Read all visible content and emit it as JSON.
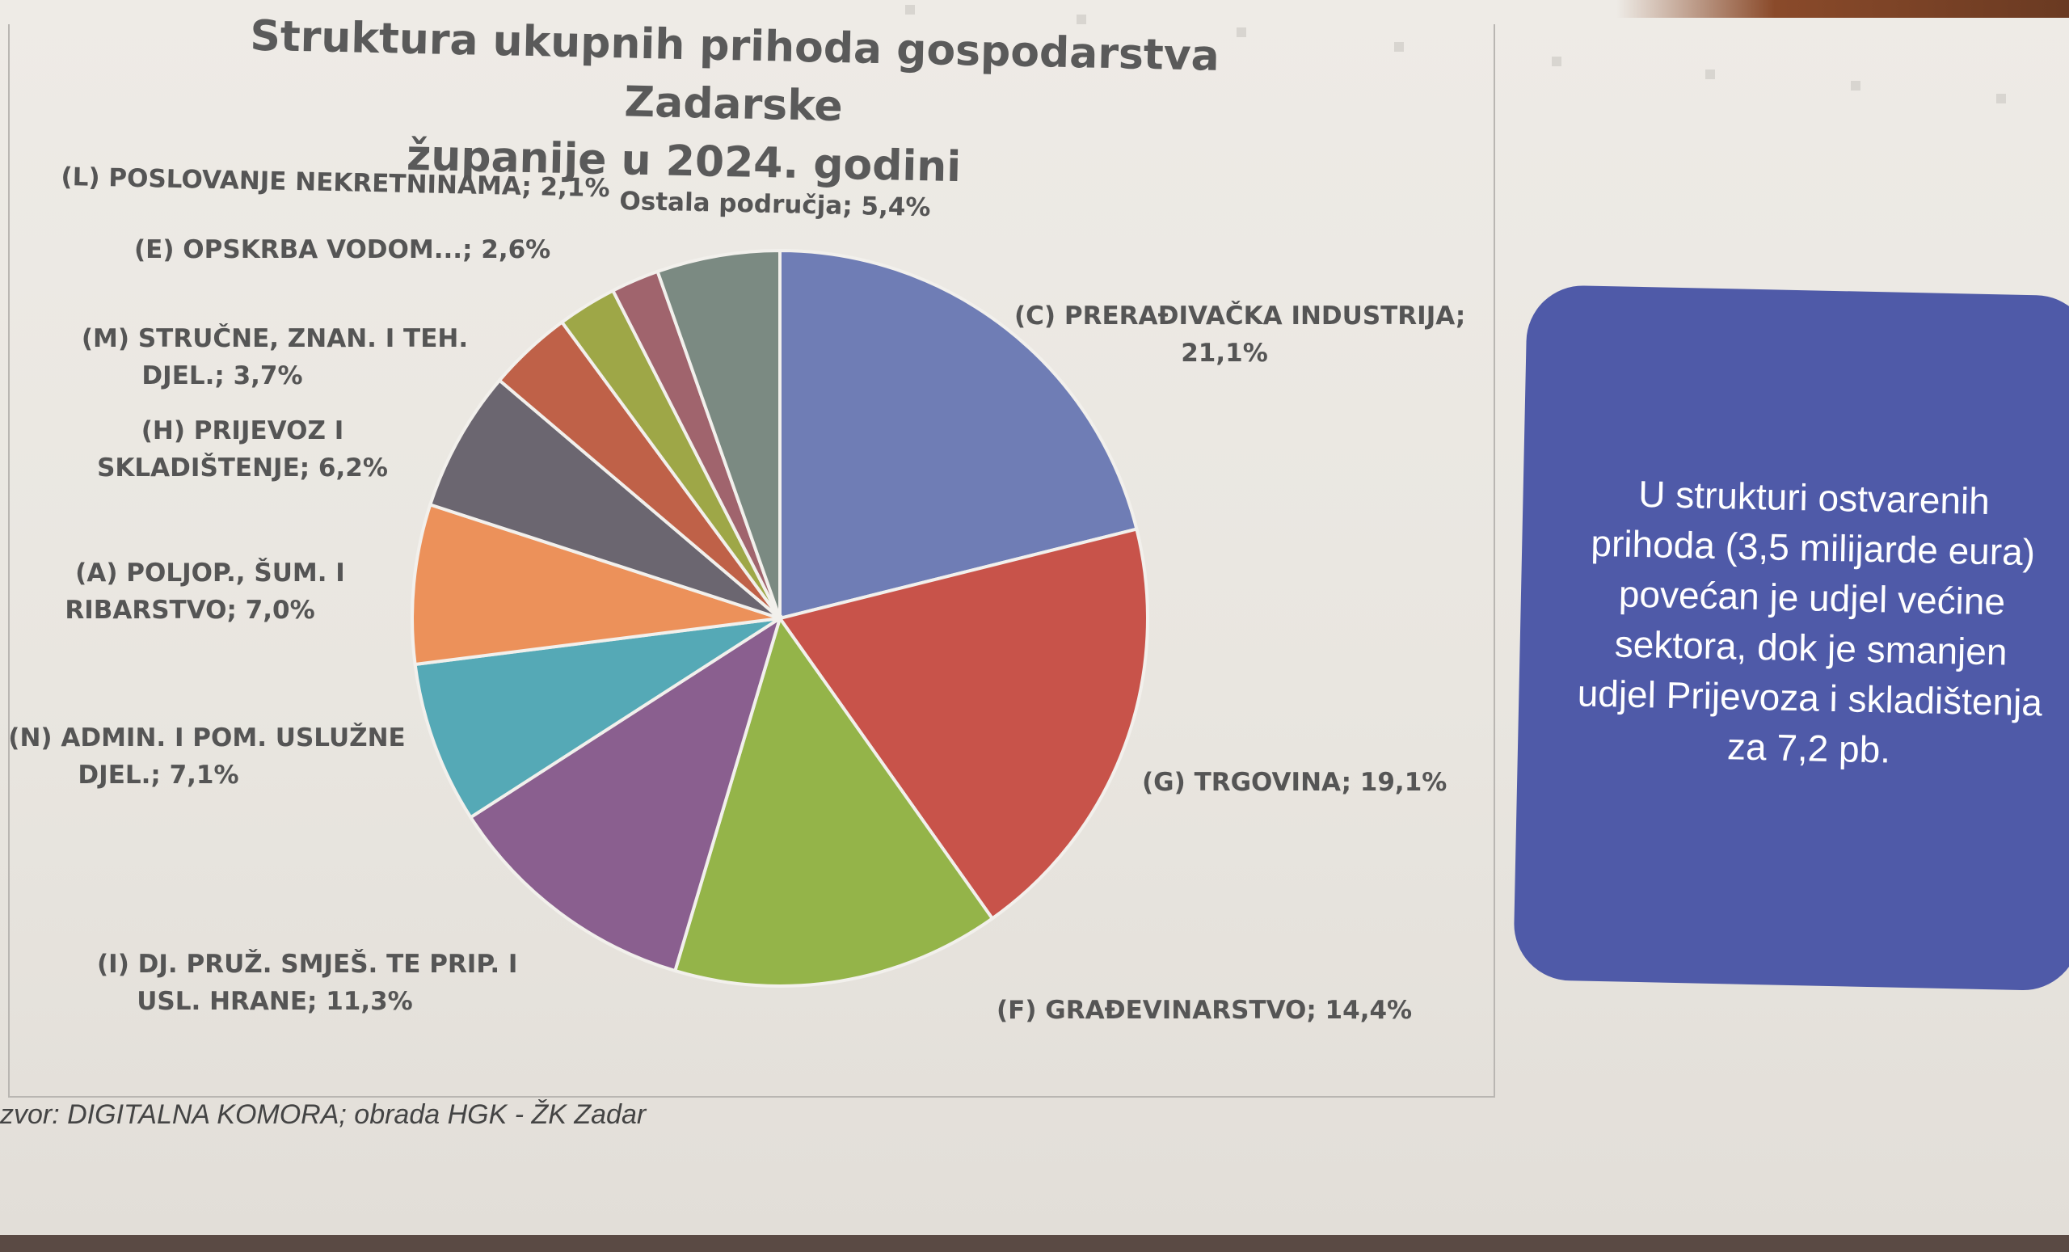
{
  "chart_data": {
    "type": "pie",
    "title_lines": [
      "Struktura ukupnih prihoda gospodarstva Zadarske",
      "županije u 2024. godini"
    ],
    "slices": [
      {
        "label_lines": [
          "(C) PRERAĐIVAČKA INDUSTRIJA;",
          "21,1%"
        ],
        "value": 21.1,
        "color": "#6f7db5"
      },
      {
        "label_lines": [
          "(G) TRGOVINA; 19,1%"
        ],
        "value": 19.1,
        "color": "#c8534a"
      },
      {
        "label_lines": [
          "(F) GRAĐEVINARSTVO; 14,4%"
        ],
        "value": 14.4,
        "color": "#94b449"
      },
      {
        "label_lines": [
          "(I) DJ. PRUŽ. SMJEŠ. TE PRIP. I",
          "USL. HRANE; 11,3%"
        ],
        "value": 11.3,
        "color": "#8a5f8f"
      },
      {
        "label_lines": [
          "(N) ADMIN. I POM. USLUŽNE",
          "DJEL.; 7,1%"
        ],
        "value": 7.1,
        "color": "#55a9b6"
      },
      {
        "label_lines": [
          "(A) POLJOP., ŠUM. I",
          "RIBARSTVO; 7,0%"
        ],
        "value": 7.0,
        "color": "#ec915a"
      },
      {
        "label_lines": [
          "(H) PRIJEVOZ I",
          "SKLADIŠTENJE;  6,2%"
        ],
        "value": 6.2,
        "color": "#6b6670"
      },
      {
        "label_lines": [
          "(M) STRUČNE, ZNAN. I TEH.",
          "DJEL.; 3,7%"
        ],
        "value": 3.7,
        "color": "#bf6148"
      },
      {
        "label_lines": [
          "(E) OPSKRBA VODOM...; 2,6%"
        ],
        "value": 2.6,
        "color": "#9ea747"
      },
      {
        "label_lines": [
          "(L) POSLOVANJE NEKRETNINAMA; 2,1%"
        ],
        "value": 2.1,
        "color": "#a0646d"
      },
      {
        "label_lines": [
          "Ostala područja; 5,4%"
        ],
        "value": 5.4,
        "color": "#7b8a82"
      }
    ]
  },
  "source": "zvor: DIGITALNA KOMORA; obrada HGK - ŽK Zadar",
  "callout": {
    "lines": [
      "U strukturi ostvarenih",
      "prihoda (3,5 milijarde eura)",
      "povećan je udjel većine",
      "sektora, dok je smanjen",
      "udjel Prijevoza i skladištenja",
      "za 7,2 pb."
    ],
    "color": "#4f5aa8"
  }
}
